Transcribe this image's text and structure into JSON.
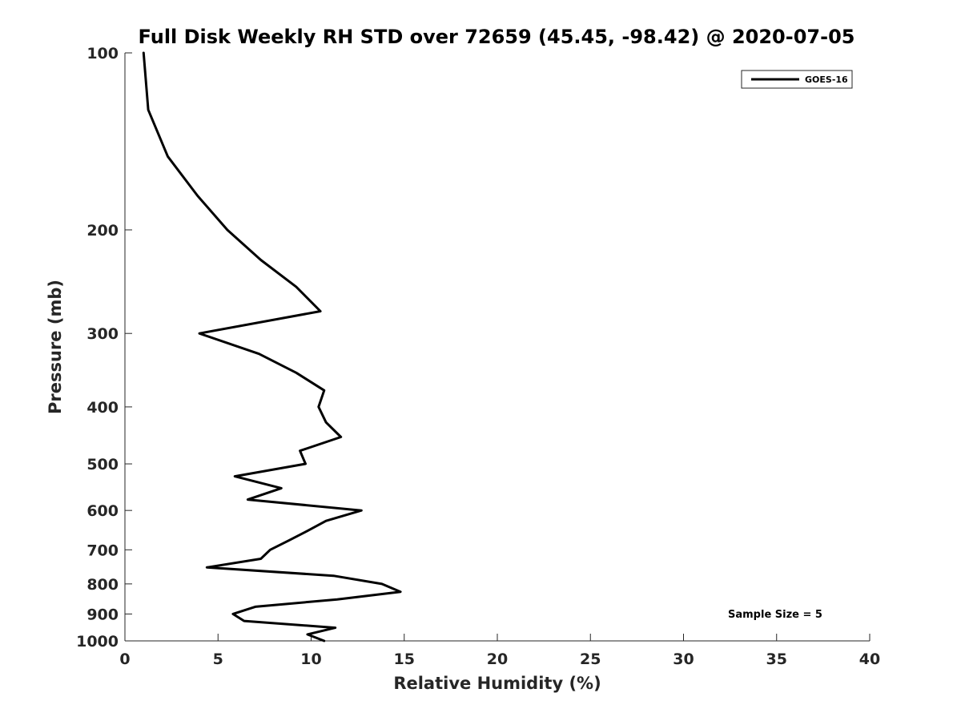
{
  "chart_data": {
    "type": "line",
    "title": "Full Disk Weekly RH STD over 72659 (45.45, -98.42) @ 2020-07-05",
    "xlabel": "Relative Humidity (%)",
    "ylabel": "Pressure (mb)",
    "xlim": [
      0,
      40
    ],
    "ylim": [
      100,
      1000
    ],
    "yscale": "log",
    "y_reversed": true,
    "grid": false,
    "xticks": [
      0,
      5,
      10,
      15,
      20,
      25,
      30,
      35,
      40
    ],
    "xtick_labels": [
      "0",
      "5",
      "10",
      "15",
      "20",
      "25",
      "30",
      "35",
      "40"
    ],
    "yticks": [
      100,
      200,
      300,
      400,
      500,
      600,
      700,
      800,
      900,
      1000
    ],
    "ytick_labels": [
      "100",
      "200",
      "300",
      "400",
      "500",
      "600",
      "700",
      "800",
      "900",
      "1000"
    ],
    "legend": {
      "position": "top-right",
      "entries": [
        "GOES-16"
      ]
    },
    "annotation": "Sample Size = 5",
    "series": [
      {
        "name": "GOES-16",
        "color": "#000000",
        "points": [
          [
            1.0,
            100
          ],
          [
            1.25,
            125
          ],
          [
            2.3,
            150
          ],
          [
            3.9,
            175
          ],
          [
            5.5,
            200
          ],
          [
            7.3,
            225
          ],
          [
            9.2,
            250
          ],
          [
            10.5,
            275
          ],
          [
            4.0,
            300
          ],
          [
            7.2,
            325
          ],
          [
            9.2,
            350
          ],
          [
            10.7,
            375
          ],
          [
            10.4,
            400
          ],
          [
            10.8,
            425
          ],
          [
            11.6,
            450
          ],
          [
            9.4,
            475
          ],
          [
            9.7,
            500
          ],
          [
            5.9,
            525
          ],
          [
            8.4,
            550
          ],
          [
            6.6,
            575
          ],
          [
            12.7,
            600
          ],
          [
            10.8,
            625
          ],
          [
            9.8,
            650
          ],
          [
            8.8,
            675
          ],
          [
            7.8,
            700
          ],
          [
            7.3,
            725
          ],
          [
            4.4,
            750
          ],
          [
            11.2,
            775
          ],
          [
            13.8,
            800
          ],
          [
            14.8,
            825
          ],
          [
            11.4,
            850
          ],
          [
            7.0,
            875
          ],
          [
            5.8,
            900
          ],
          [
            6.4,
            925
          ],
          [
            11.3,
            950
          ],
          [
            9.8,
            975
          ],
          [
            10.7,
            1000
          ]
        ]
      }
    ]
  }
}
